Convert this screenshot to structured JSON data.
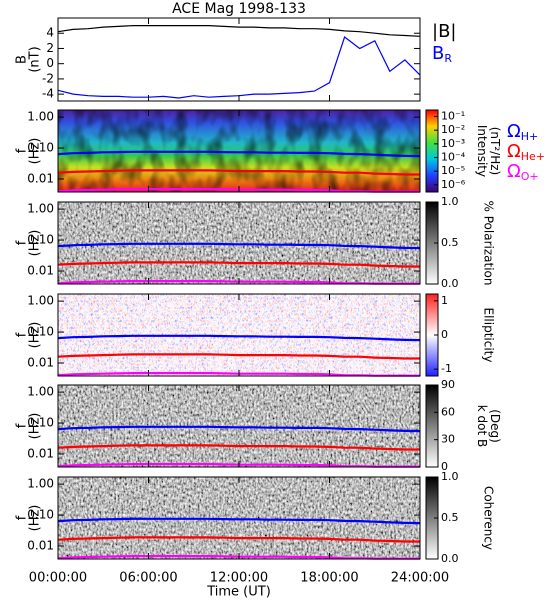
{
  "chart_data": [
    {
      "type": "line",
      "title": "ACE Mag 1998-133",
      "ylabel": [
        "B",
        "(nT)"
      ],
      "x": [
        0,
        1,
        2,
        3,
        4,
        5,
        6,
        7,
        8,
        9,
        10,
        11,
        12,
        13,
        14,
        15,
        16,
        17,
        18,
        19,
        20,
        21,
        22,
        23,
        24
      ],
      "xlim": [
        0,
        24
      ],
      "xticks": [
        0,
        6,
        12,
        18,
        24
      ],
      "ylim": [
        -4.9,
        6.0
      ],
      "yticks": [
        4,
        2,
        0,
        -2,
        -4
      ],
      "series": [
        {
          "name": "|B|",
          "color": "#000000",
          "values": [
            4.2,
            4.5,
            4.6,
            4.8,
            4.9,
            5.0,
            5.0,
            5.0,
            5.0,
            5.0,
            5.0,
            4.9,
            4.8,
            4.8,
            4.7,
            4.7,
            4.6,
            4.6,
            4.5,
            4.3,
            4.2,
            4.0,
            3.8,
            3.7,
            3.6
          ]
        },
        {
          "name": "B",
          "subscript": "R",
          "color": "#0000ff",
          "values": [
            -3.5,
            -4.0,
            -4.2,
            -4.3,
            -4.3,
            -4.4,
            -4.4,
            -4.3,
            -4.5,
            -4.2,
            -4.4,
            -4.3,
            -4.2,
            -4.0,
            -4.0,
            -3.9,
            -3.8,
            -3.6,
            -2.5,
            3.5,
            2.0,
            3.0,
            -1.0,
            0.5,
            -1.5
          ]
        }
      ]
    },
    {
      "type": "spectrogram",
      "ylabel": [
        "f",
        "(Hz)"
      ],
      "ylog": true,
      "x": [
        0,
        1,
        2,
        3,
        4,
        5,
        6,
        7,
        8,
        9,
        10,
        11,
        12,
        13,
        14,
        15,
        16,
        17,
        18,
        19,
        20,
        21,
        22,
        23,
        24
      ],
      "xlim": [
        0,
        24
      ],
      "xticks": [
        0,
        6,
        12,
        18,
        24
      ],
      "ylim": [
        0.0038,
        1.7
      ],
      "yticks": [
        {
          "value": 1,
          "label": "1.00"
        },
        {
          "value": 0.1,
          "label": "0.10"
        },
        {
          "value": 0.01,
          "label": "0.01"
        }
      ],
      "colormap": "rainbow",
      "clog": true,
      "clim": [
        3e-07,
        0.3
      ],
      "cticks": [
        {
          "value": 0.1,
          "label": "10⁻¹"
        },
        {
          "value": 0.01,
          "label": "10⁻²"
        },
        {
          "value": 0.001,
          "label": "10⁻³"
        },
        {
          "value": 0.0001,
          "label": "10⁻⁴"
        },
        {
          "value": 1e-05,
          "label": "10⁻⁵"
        },
        {
          "value": 1e-06,
          "label": "10⁻⁶"
        }
      ],
      "clabel": [
        "Intensity",
        "(nT²/Hz)"
      ],
      "series": [
        {
          "name": "Ω",
          "subscript": "H+",
          "color": "#0000ff",
          "values": [
            0.064,
            0.068,
            0.07,
            0.073,
            0.074,
            0.076,
            0.076,
            0.076,
            0.076,
            0.076,
            0.076,
            0.074,
            0.073,
            0.073,
            0.071,
            0.071,
            0.07,
            0.07,
            0.068,
            0.065,
            0.064,
            0.061,
            0.058,
            0.056,
            0.055
          ]
        },
        {
          "name": "Ω",
          "subscript": "He+",
          "color": "#ff0000",
          "values": [
            0.016,
            0.017,
            0.0175,
            0.018,
            0.0185,
            0.019,
            0.019,
            0.019,
            0.019,
            0.019,
            0.019,
            0.0185,
            0.018,
            0.018,
            0.018,
            0.018,
            0.0175,
            0.0175,
            0.017,
            0.016,
            0.016,
            0.015,
            0.0145,
            0.014,
            0.014
          ]
        },
        {
          "name": "Ω",
          "subscript": "O+",
          "color": "#ff00ff",
          "values": [
            0.004,
            0.0043,
            0.0044,
            0.0045,
            0.0046,
            0.0047,
            0.0047,
            0.0047,
            0.0047,
            0.0047,
            0.0047,
            0.0046,
            0.0045,
            0.0045,
            0.0045,
            0.0045,
            0.0044,
            0.0044,
            0.0043,
            0.004,
            0.004,
            0.0039,
            0.0039,
            0.0039,
            0.0039
          ]
        }
      ]
    },
    {
      "type": "spectrogram",
      "ylabel": [
        "f",
        "(Hz)"
      ],
      "ylog": true,
      "x": [
        0,
        1,
        2,
        3,
        4,
        5,
        6,
        7,
        8,
        9,
        10,
        11,
        12,
        13,
        14,
        15,
        16,
        17,
        18,
        19,
        20,
        21,
        22,
        23,
        24
      ],
      "xlim": [
        0,
        24
      ],
      "xticks": [
        0,
        6,
        12,
        18,
        24
      ],
      "ylim": [
        0.0038,
        1.7
      ],
      "yticks": [
        {
          "value": 1,
          "label": "1.00"
        },
        {
          "value": 0.1,
          "label": "0.10"
        },
        {
          "value": 0.01,
          "label": "0.01"
        }
      ],
      "colormap": "gray",
      "clim": [
        0,
        1
      ],
      "cticks": [
        {
          "value": 1,
          "label": "1.0"
        },
        {
          "value": 0.5,
          "label": "0.5"
        },
        {
          "value": 0,
          "label": "0.0"
        }
      ],
      "clabel": [
        "% Polarization"
      ],
      "series": [
        {
          "color": "#0000ff",
          "values": [
            0.064,
            0.068,
            0.07,
            0.073,
            0.074,
            0.076,
            0.076,
            0.076,
            0.076,
            0.076,
            0.076,
            0.074,
            0.073,
            0.073,
            0.071,
            0.071,
            0.07,
            0.07,
            0.068,
            0.065,
            0.064,
            0.061,
            0.058,
            0.056,
            0.055
          ]
        },
        {
          "color": "#ff0000",
          "values": [
            0.016,
            0.017,
            0.0175,
            0.018,
            0.0185,
            0.019,
            0.019,
            0.019,
            0.019,
            0.019,
            0.019,
            0.0185,
            0.018,
            0.018,
            0.018,
            0.018,
            0.0175,
            0.0175,
            0.017,
            0.016,
            0.016,
            0.015,
            0.0145,
            0.014,
            0.014
          ]
        },
        {
          "color": "#ff00ff",
          "values": [
            0.004,
            0.0043,
            0.0044,
            0.0045,
            0.0046,
            0.0047,
            0.0047,
            0.0047,
            0.0047,
            0.0047,
            0.0047,
            0.0046,
            0.0045,
            0.0045,
            0.0045,
            0.0045,
            0.0044,
            0.0044,
            0.0043,
            0.004,
            0.004,
            0.0039,
            0.0039,
            0.0039,
            0.0039
          ]
        }
      ]
    },
    {
      "type": "spectrogram",
      "ylabel": [
        "f",
        "(Hz)"
      ],
      "ylog": true,
      "x": [
        0,
        1,
        2,
        3,
        4,
        5,
        6,
        7,
        8,
        9,
        10,
        11,
        12,
        13,
        14,
        15,
        16,
        17,
        18,
        19,
        20,
        21,
        22,
        23,
        24
      ],
      "xlim": [
        0,
        24
      ],
      "xticks": [
        0,
        6,
        12,
        18,
        24
      ],
      "ylim": [
        0.0038,
        1.7
      ],
      "yticks": [
        {
          "value": 1,
          "label": "1.00"
        },
        {
          "value": 0.1,
          "label": "0.10"
        },
        {
          "value": 0.01,
          "label": "0.01"
        }
      ],
      "colormap": "bwr",
      "clim": [
        -1.2,
        1.2
      ],
      "cticks": [
        1,
        0,
        -1
      ],
      "clabel": [
        "Ellipticity"
      ],
      "series": [
        {
          "color": "#0000ff",
          "values": [
            0.064,
            0.068,
            0.07,
            0.073,
            0.074,
            0.076,
            0.076,
            0.076,
            0.076,
            0.076,
            0.076,
            0.074,
            0.073,
            0.073,
            0.071,
            0.071,
            0.07,
            0.07,
            0.068,
            0.065,
            0.064,
            0.061,
            0.058,
            0.056,
            0.055
          ]
        },
        {
          "color": "#ff0000",
          "values": [
            0.016,
            0.017,
            0.0175,
            0.018,
            0.0185,
            0.019,
            0.019,
            0.019,
            0.019,
            0.019,
            0.019,
            0.0185,
            0.018,
            0.018,
            0.018,
            0.018,
            0.0175,
            0.0175,
            0.017,
            0.016,
            0.016,
            0.015,
            0.0145,
            0.014,
            0.014
          ]
        },
        {
          "color": "#ff00ff",
          "values": [
            0.004,
            0.0043,
            0.0044,
            0.0045,
            0.0046,
            0.0047,
            0.0047,
            0.0047,
            0.0047,
            0.0047,
            0.0047,
            0.0046,
            0.0045,
            0.0045,
            0.0045,
            0.0045,
            0.0044,
            0.0044,
            0.0043,
            0.004,
            0.004,
            0.0039,
            0.0039,
            0.0039,
            0.0039
          ]
        }
      ]
    },
    {
      "type": "spectrogram",
      "ylabel": [
        "f",
        "(Hz)"
      ],
      "ylog": true,
      "x": [
        0,
        1,
        2,
        3,
        4,
        5,
        6,
        7,
        8,
        9,
        10,
        11,
        12,
        13,
        14,
        15,
        16,
        17,
        18,
        19,
        20,
        21,
        22,
        23,
        24
      ],
      "xlim": [
        0,
        24
      ],
      "xticks": [
        0,
        6,
        12,
        18,
        24
      ],
      "ylim": [
        0.0038,
        1.7
      ],
      "yticks": [
        {
          "value": 1,
          "label": "1.00"
        },
        {
          "value": 0.1,
          "label": "0.10"
        },
        {
          "value": 0.01,
          "label": "0.01"
        }
      ],
      "colormap": "gray",
      "clim": [
        0,
        90
      ],
      "cticks": [
        90,
        60,
        30,
        0
      ],
      "clabel": [
        "k dot B",
        "(Deg)"
      ],
      "series": [
        {
          "color": "#0000ff",
          "values": [
            0.064,
            0.068,
            0.07,
            0.073,
            0.074,
            0.076,
            0.076,
            0.076,
            0.076,
            0.076,
            0.076,
            0.074,
            0.073,
            0.073,
            0.071,
            0.071,
            0.07,
            0.07,
            0.068,
            0.065,
            0.064,
            0.061,
            0.058,
            0.056,
            0.055
          ]
        },
        {
          "color": "#ff0000",
          "values": [
            0.016,
            0.017,
            0.0175,
            0.018,
            0.0185,
            0.019,
            0.019,
            0.019,
            0.019,
            0.019,
            0.019,
            0.0185,
            0.018,
            0.018,
            0.018,
            0.018,
            0.0175,
            0.0175,
            0.017,
            0.016,
            0.016,
            0.015,
            0.0145,
            0.014,
            0.014
          ]
        },
        {
          "color": "#ff00ff",
          "values": [
            0.004,
            0.0043,
            0.0044,
            0.0045,
            0.0046,
            0.0047,
            0.0047,
            0.0047,
            0.0047,
            0.0047,
            0.0047,
            0.0046,
            0.0045,
            0.0045,
            0.0045,
            0.0045,
            0.0044,
            0.0044,
            0.0043,
            0.004,
            0.004,
            0.0039,
            0.0039,
            0.0039,
            0.0039
          ]
        }
      ]
    },
    {
      "type": "spectrogram",
      "ylabel": [
        "f",
        "(Hz)"
      ],
      "ylog": true,
      "xlabel": "Time (UT)",
      "x": [
        0,
        1,
        2,
        3,
        4,
        5,
        6,
        7,
        8,
        9,
        10,
        11,
        12,
        13,
        14,
        15,
        16,
        17,
        18,
        19,
        20,
        21,
        22,
        23,
        24
      ],
      "xlim": [
        0,
        24
      ],
      "xticks": [
        {
          "value": 0,
          "label": "00:00:00"
        },
        {
          "value": 6,
          "label": "06:00:00"
        },
        {
          "value": 12,
          "label": "12:00:00"
        },
        {
          "value": 18,
          "label": "18:00:00"
        },
        {
          "value": 24,
          "label": "24:00:00"
        }
      ],
      "ylim": [
        0.0038,
        1.7
      ],
      "yticks": [
        {
          "value": 1,
          "label": "1.00"
        },
        {
          "value": 0.1,
          "label": "0.10"
        },
        {
          "value": 0.01,
          "label": "0.01"
        }
      ],
      "colormap": "gray",
      "clim": [
        0,
        1
      ],
      "cticks": [
        {
          "value": 1,
          "label": "1.0"
        },
        {
          "value": 0.5,
          "label": "0.5"
        },
        {
          "value": 0,
          "label": "0.0"
        }
      ],
      "clabel": [
        "Coherency"
      ],
      "series": [
        {
          "color": "#0000ff",
          "values": [
            0.064,
            0.068,
            0.07,
            0.073,
            0.074,
            0.076,
            0.076,
            0.076,
            0.076,
            0.076,
            0.076,
            0.074,
            0.073,
            0.073,
            0.071,
            0.071,
            0.07,
            0.07,
            0.068,
            0.065,
            0.064,
            0.061,
            0.058,
            0.056,
            0.055
          ]
        },
        {
          "color": "#ff0000",
          "values": [
            0.016,
            0.017,
            0.0175,
            0.018,
            0.0185,
            0.019,
            0.019,
            0.019,
            0.019,
            0.019,
            0.019,
            0.0185,
            0.018,
            0.018,
            0.018,
            0.018,
            0.0175,
            0.0175,
            0.017,
            0.016,
            0.016,
            0.015,
            0.0145,
            0.014,
            0.014
          ]
        },
        {
          "color": "#ff00ff",
          "values": [
            0.004,
            0.0043,
            0.0044,
            0.0045,
            0.0046,
            0.0047,
            0.0047,
            0.0047,
            0.0047,
            0.0047,
            0.0047,
            0.0046,
            0.0045,
            0.0045,
            0.0045,
            0.0045,
            0.0044,
            0.0044,
            0.0043,
            0.004,
            0.004,
            0.0039,
            0.0039,
            0.0039,
            0.0039
          ]
        }
      ]
    }
  ]
}
